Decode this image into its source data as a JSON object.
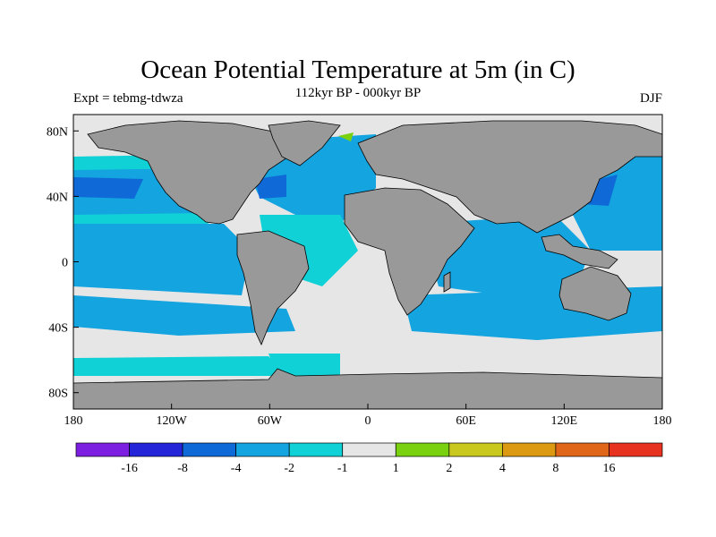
{
  "title": "Ocean Potential Temperature at 5m (in C)",
  "subtitle": "112kyr BP - 000kyr BP",
  "left_label": "Expt = tebmg-tdwza",
  "right_label": "DJF",
  "map": {
    "projection": "cylindrical equidistant",
    "lon_range": [
      -180,
      180
    ],
    "lat_range": [
      -90,
      90
    ],
    "x_ticks": [
      {
        "lon": -180,
        "label": "180"
      },
      {
        "lon": -120,
        "label": "120W"
      },
      {
        "lon": -60,
        "label": "60W"
      },
      {
        "lon": 0,
        "label": "0"
      },
      {
        "lon": 60,
        "label": "60E"
      },
      {
        "lon": 120,
        "label": "120E"
      },
      {
        "lon": 180,
        "label": "180"
      }
    ],
    "y_ticks": [
      {
        "lat": 80,
        "label": "80N"
      },
      {
        "lat": 40,
        "label": "40N"
      },
      {
        "lat": 0,
        "label": "0"
      },
      {
        "lat": -40,
        "label": "40S"
      },
      {
        "lat": -80,
        "label": "80S"
      }
    ],
    "land_color": "#999999",
    "near_zero_color": "#e6e6e6"
  },
  "colorbar": {
    "labels": [
      "-16",
      "-8",
      "-4",
      "-2",
      "-1",
      "1",
      "2",
      "4",
      "8",
      "16"
    ],
    "colors": [
      "#7d1fe0",
      "#2424d8",
      "#0f6ad8",
      "#14a4e0",
      "#10d2d6",
      "#e6e6e6",
      "#7ad10f",
      "#c8c81e",
      "#dc9a12",
      "#e0661a",
      "#e6321e"
    ]
  }
}
